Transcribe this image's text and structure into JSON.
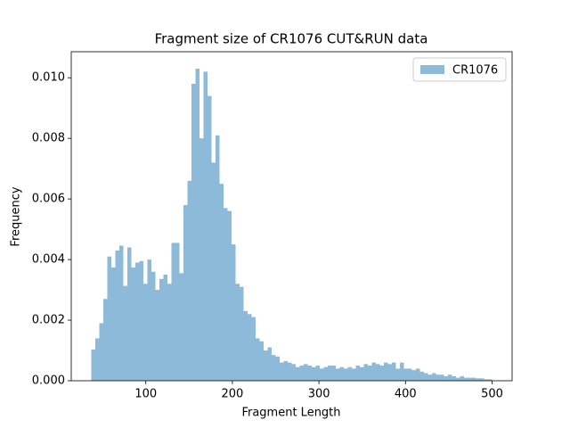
{
  "chart_data": {
    "type": "histogram",
    "title": "Fragment size of CR1076 CUT&RUN data",
    "x_label": "Fragment Length",
    "y_label": "Frequency",
    "legend": "upper right",
    "series": [
      {
        "name": "CR1076",
        "color": "#8ebad9",
        "bins": [
          37,
          41.63,
          46.26,
          50.89,
          55.52,
          60.15,
          64.78,
          69.41,
          74.04,
          78.67,
          83.3,
          87.93,
          92.56,
          97.19,
          101.82,
          106.45,
          111.08,
          115.71,
          120.34,
          124.97,
          129.6,
          134.23,
          138.86,
          143.49,
          148.12,
          152.75,
          157.38,
          162.01,
          166.64,
          171.27,
          175.9,
          180.53,
          185.16,
          189.79,
          194.42,
          199.05,
          203.68,
          208.31,
          212.94,
          217.57,
          222.2,
          226.83,
          231.46,
          236.09,
          240.72,
          245.35,
          249.98,
          254.61,
          259.24,
          263.87,
          268.5,
          273.13,
          277.76,
          282.39,
          287.02,
          291.65,
          296.28,
          300.91,
          305.54,
          310.17,
          314.8,
          319.43,
          324.06,
          328.69,
          333.32,
          337.95,
          342.58,
          347.21,
          351.84,
          356.47,
          361.1,
          365.73,
          370.36,
          374.99,
          379.62,
          384.25,
          388.88,
          393.51,
          398.14,
          402.77,
          407.4,
          412.03,
          416.66,
          421.29,
          425.92,
          430.55,
          435.18,
          439.81,
          444.44,
          449.07,
          453.7,
          458.33,
          462.96,
          467.59,
          472.22,
          476.85,
          481.48,
          486.11,
          490.74,
          495.37,
          500
        ],
        "values": [
          0.00103,
          0.0014,
          0.0019,
          0.0027,
          0.0041,
          0.00374,
          0.0043,
          0.00446,
          0.00313,
          0.0044,
          0.00374,
          0.0039,
          0.00395,
          0.0032,
          0.004,
          0.0036,
          0.003,
          0.00336,
          0.0035,
          0.0032,
          0.00455,
          0.00455,
          0.00355,
          0.0058,
          0.0066,
          0.0098,
          0.0103,
          0.008,
          0.0102,
          0.0094,
          0.0072,
          0.0081,
          0.0065,
          0.0057,
          0.0056,
          0.0045,
          0.0032,
          0.0031,
          0.0023,
          0.0022,
          0.0021,
          0.0014,
          0.0013,
          0.001,
          0.0011,
          0.00085,
          0.0008,
          0.0006,
          0.00065,
          0.0006,
          0.00055,
          0.00045,
          0.0005,
          0.00055,
          0.0005,
          0.00045,
          0.0005,
          0.0004,
          0.00045,
          0.0005,
          0.0005,
          0.0004,
          0.00045,
          0.0004,
          0.00045,
          0.0004,
          0.0005,
          0.00045,
          0.00055,
          0.0005,
          0.0006,
          0.00055,
          0.0005,
          0.0006,
          0.00055,
          0.0006,
          0.0004,
          0.0006,
          0.0004,
          0.0004,
          0.00035,
          0.0004,
          0.0003,
          0.00025,
          0.0002,
          0.00025,
          0.0002,
          0.0002,
          0.00015,
          0.0002,
          0.00015,
          0.0001,
          0.00015,
          0.0001,
          0.0001,
          0.0001,
          8e-05,
          8e-05,
          5e-05,
          5e-05
        ]
      }
    ],
    "xlim": [
      13.85,
      523.15
    ],
    "ylim": [
      0,
      0.01086
    ],
    "xticks": [
      100,
      200,
      300,
      400,
      500
    ],
    "yticks": [
      {
        "value": 0,
        "label": "0.000"
      },
      {
        "value": 0.002,
        "label": "0.002"
      },
      {
        "value": 0.004,
        "label": "0.004"
      },
      {
        "value": 0.006,
        "label": "0.006"
      },
      {
        "value": 0.008,
        "label": "0.008"
      },
      {
        "value": 0.01,
        "label": "0.010"
      }
    ]
  }
}
